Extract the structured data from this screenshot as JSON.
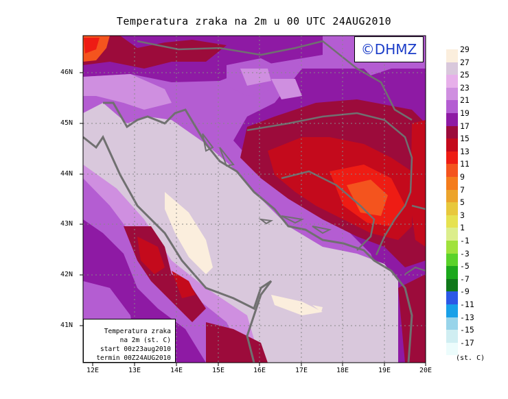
{
  "title": "Temperatura zraka na 2m u 00 UTC 24AUG2010",
  "logo": "©DHMZ",
  "info_box": {
    "line1": "Temperatura zraka",
    "line2": "na 2m (st. C)",
    "line3": "start 00z23aug2010",
    "line4": "termin 00Z24AUG2010"
  },
  "lat_labels": [
    "46N",
    "45N",
    "44N",
    "43N",
    "42N",
    "41N"
  ],
  "lon_labels": [
    "12E",
    "13E",
    "14E",
    "15E",
    "16E",
    "17E",
    "18E",
    "19E",
    "20E"
  ],
  "legend": {
    "unit": "(st. C)",
    "labels": [
      "29",
      "27",
      "25",
      "23",
      "21",
      "19",
      "17",
      "15",
      "13",
      "11",
      "9",
      "7",
      "5",
      "3",
      "1",
      "-1",
      "-3",
      "-5",
      "-7",
      "-9",
      "-11",
      "-13",
      "-15",
      "-17"
    ],
    "colors": [
      "#fbeedd",
      "#d9c8dc",
      "#e7b0ea",
      "#cf8fe0",
      "#b45dd2",
      "#8e1aa4",
      "#9c0b3b",
      "#c40a1c",
      "#ee1c14",
      "#f4541e",
      "#f47c1c",
      "#eca42c",
      "#e8c83c",
      "#e6e250",
      "#dcee8c",
      "#a0e23c",
      "#5ad22a",
      "#1ca81c",
      "#10781a",
      "#2c58e6",
      "#18a0e8",
      "#98d4ea",
      "#d0eef2",
      "#ecfcfc"
    ]
  },
  "colors": {
    "sea": "#d9c8dc",
    "coast": "#707070"
  }
}
